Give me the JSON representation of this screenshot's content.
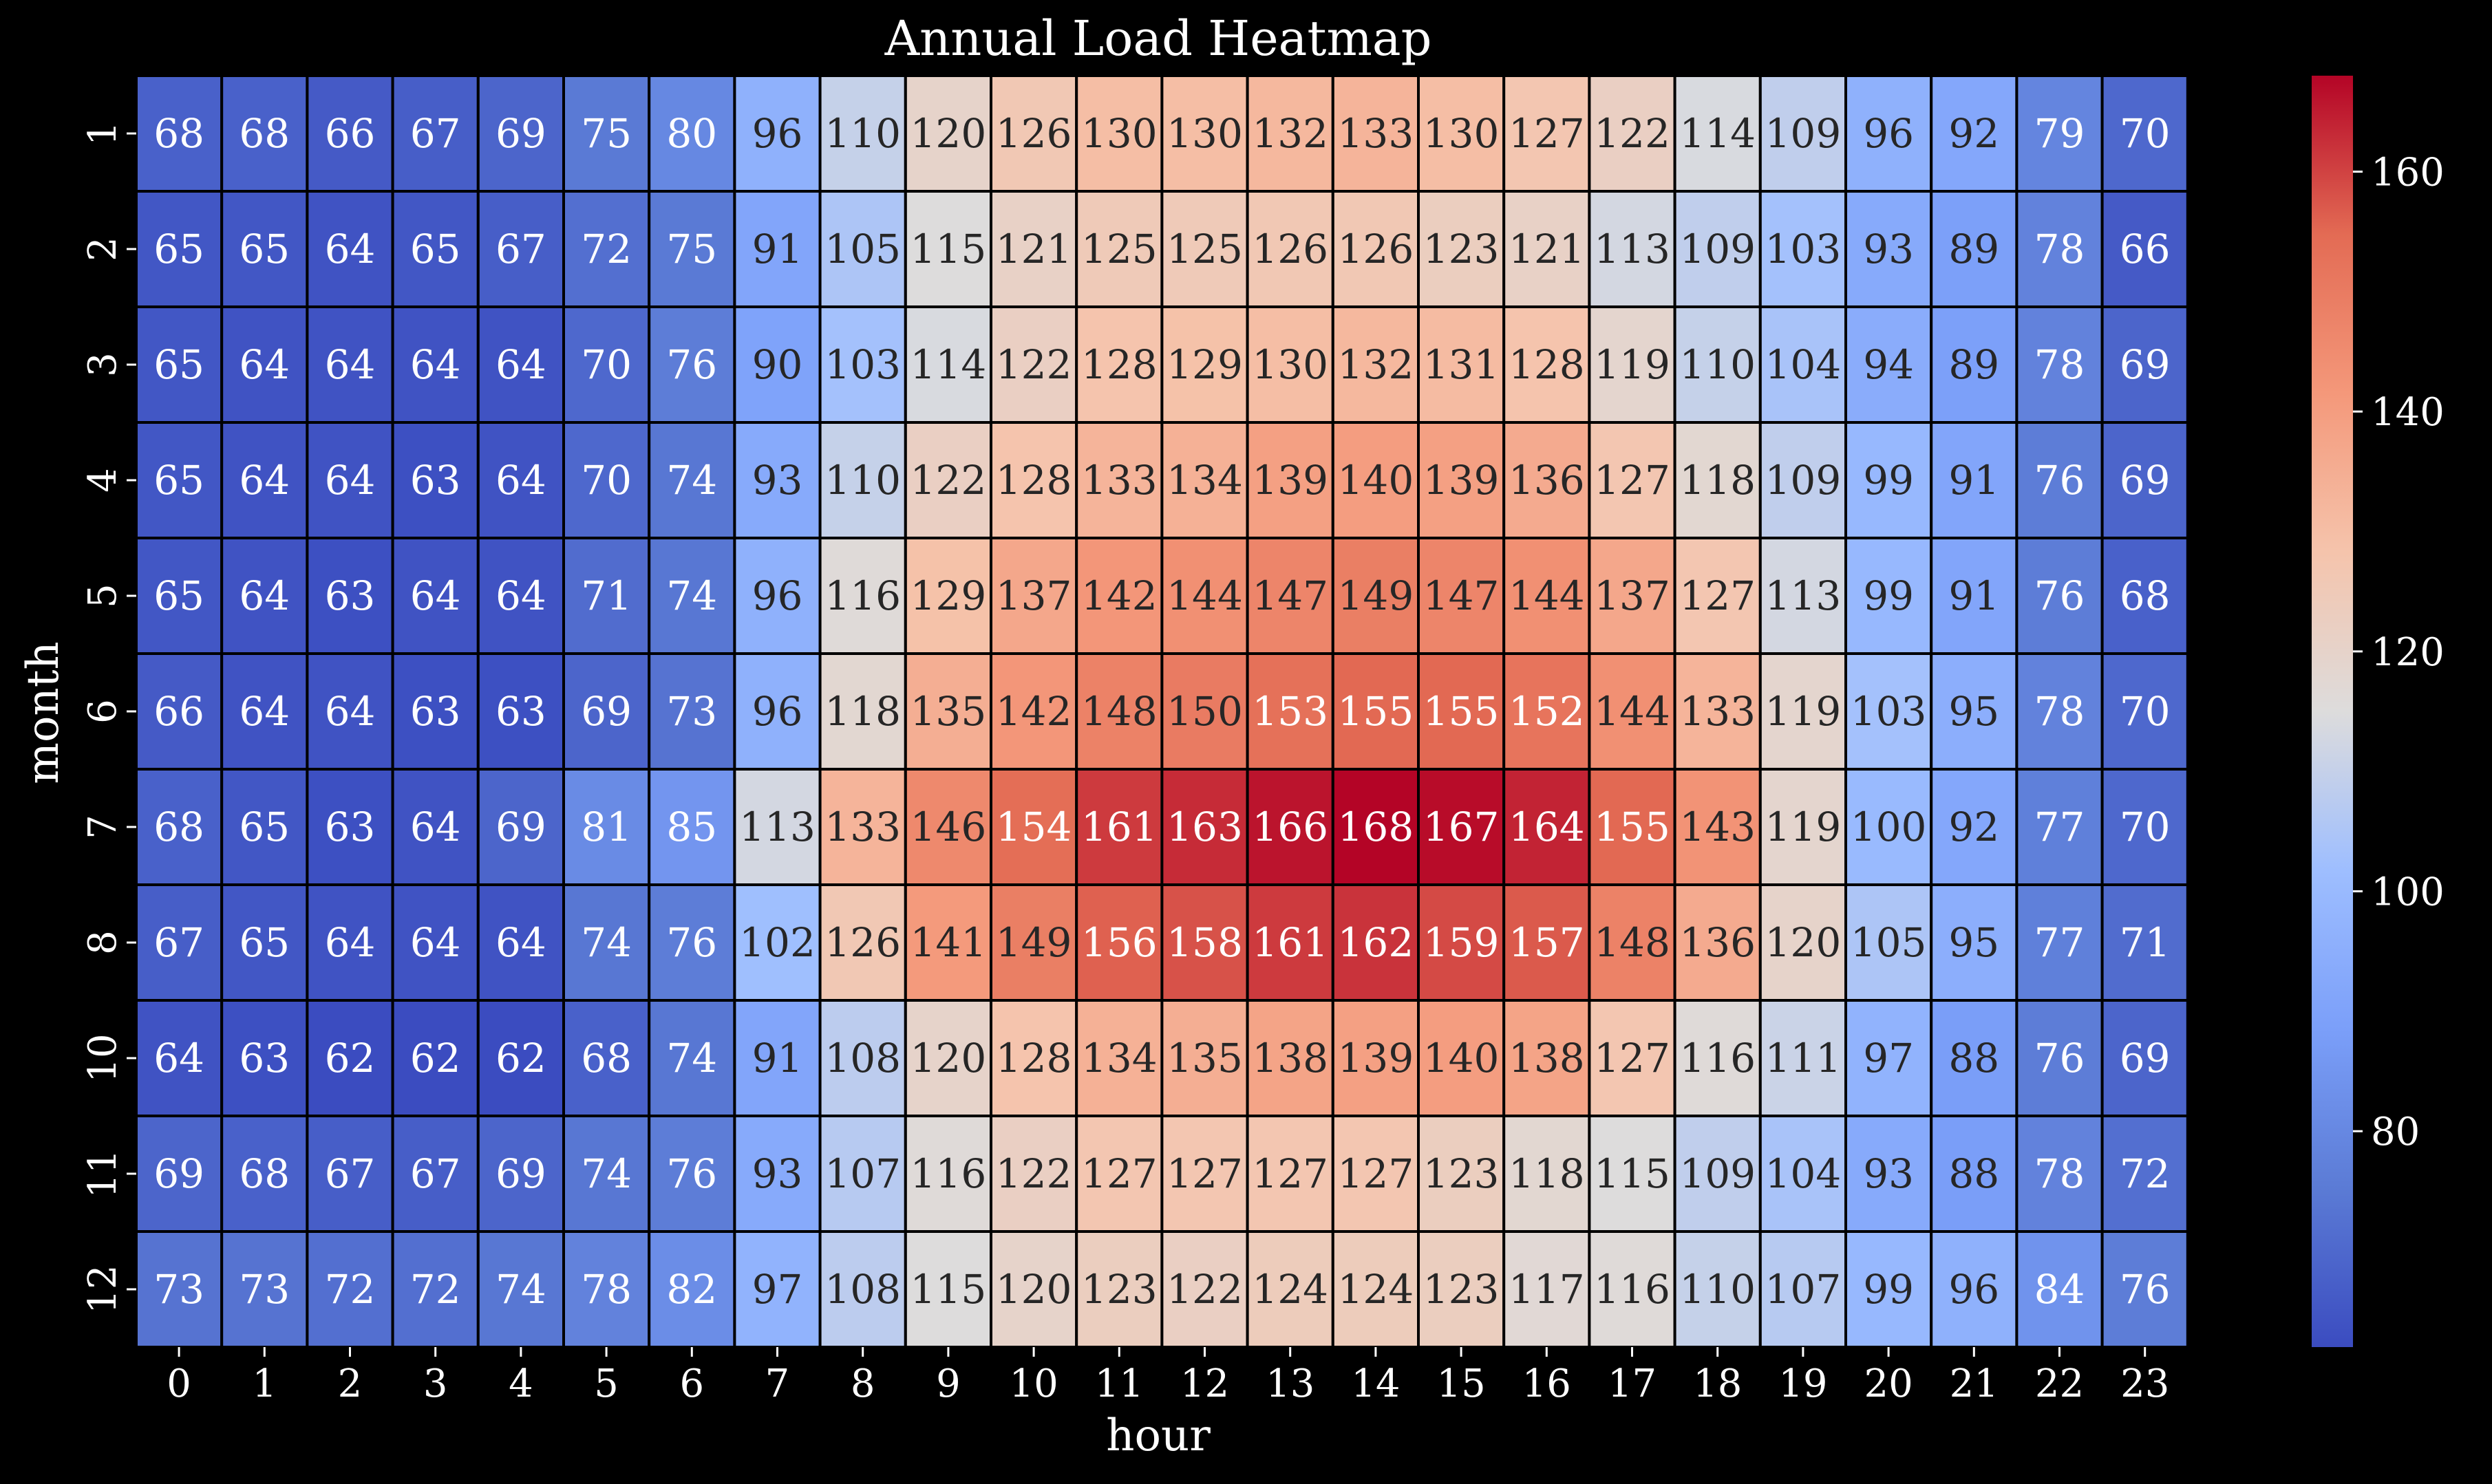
{
  "chart_data": {
    "type": "heatmap",
    "title": "Annual Load Heatmap",
    "xlabel": "hour",
    "ylabel": "month",
    "x_categories": [
      "0",
      "1",
      "2",
      "3",
      "4",
      "5",
      "6",
      "7",
      "8",
      "9",
      "10",
      "11",
      "12",
      "13",
      "14",
      "15",
      "16",
      "17",
      "18",
      "19",
      "20",
      "21",
      "22",
      "23"
    ],
    "y_categories": [
      "1",
      "2",
      "3",
      "4",
      "5",
      "6",
      "7",
      "8",
      "10",
      "11",
      "12"
    ],
    "values": [
      [
        68,
        68,
        66,
        67,
        69,
        75,
        80,
        96,
        110,
        120,
        126,
        130,
        130,
        132,
        133,
        130,
        127,
        122,
        114,
        109,
        96,
        92,
        79,
        70
      ],
      [
        65,
        65,
        64,
        65,
        67,
        72,
        75,
        91,
        105,
        115,
        121,
        125,
        125,
        126,
        126,
        123,
        121,
        113,
        109,
        103,
        93,
        89,
        78,
        66
      ],
      [
        65,
        64,
        64,
        64,
        64,
        70,
        76,
        90,
        103,
        114,
        122,
        128,
        129,
        130,
        132,
        131,
        128,
        119,
        110,
        104,
        94,
        89,
        78,
        69
      ],
      [
        65,
        64,
        64,
        63,
        64,
        70,
        74,
        93,
        110,
        122,
        128,
        133,
        134,
        139,
        140,
        139,
        136,
        127,
        118,
        109,
        99,
        91,
        76,
        69
      ],
      [
        65,
        64,
        63,
        64,
        64,
        71,
        74,
        96,
        116,
        129,
        137,
        142,
        144,
        147,
        149,
        147,
        144,
        137,
        127,
        113,
        99,
        91,
        76,
        68
      ],
      [
        66,
        64,
        64,
        63,
        63,
        69,
        73,
        96,
        118,
        135,
        142,
        148,
        150,
        153,
        155,
        155,
        152,
        144,
        133,
        119,
        103,
        95,
        78,
        70
      ],
      [
        68,
        65,
        63,
        64,
        69,
        81,
        85,
        113,
        133,
        146,
        154,
        161,
        163,
        166,
        168,
        167,
        164,
        155,
        143,
        119,
        100,
        92,
        77,
        70
      ],
      [
        67,
        65,
        64,
        64,
        64,
        74,
        76,
        102,
        126,
        141,
        149,
        156,
        158,
        161,
        162,
        159,
        157,
        148,
        136,
        120,
        105,
        95,
        77,
        71
      ],
      [
        64,
        63,
        62,
        62,
        62,
        68,
        74,
        91,
        108,
        120,
        128,
        134,
        135,
        138,
        139,
        140,
        138,
        127,
        116,
        111,
        97,
        88,
        76,
        69
      ],
      [
        69,
        68,
        67,
        67,
        69,
        74,
        76,
        93,
        107,
        116,
        122,
        127,
        127,
        127,
        127,
        123,
        118,
        115,
        109,
        104,
        93,
        88,
        78,
        72
      ],
      [
        73,
        73,
        72,
        72,
        74,
        78,
        82,
        97,
        108,
        115,
        120,
        123,
        122,
        124,
        124,
        123,
        117,
        116,
        110,
        107,
        99,
        96,
        84,
        76
      ]
    ],
    "colormap": "coolwarm",
    "vmin": 62,
    "vmax": 168,
    "colorbar_ticks": [
      80,
      100,
      120,
      140,
      160
    ],
    "annotations": true
  }
}
